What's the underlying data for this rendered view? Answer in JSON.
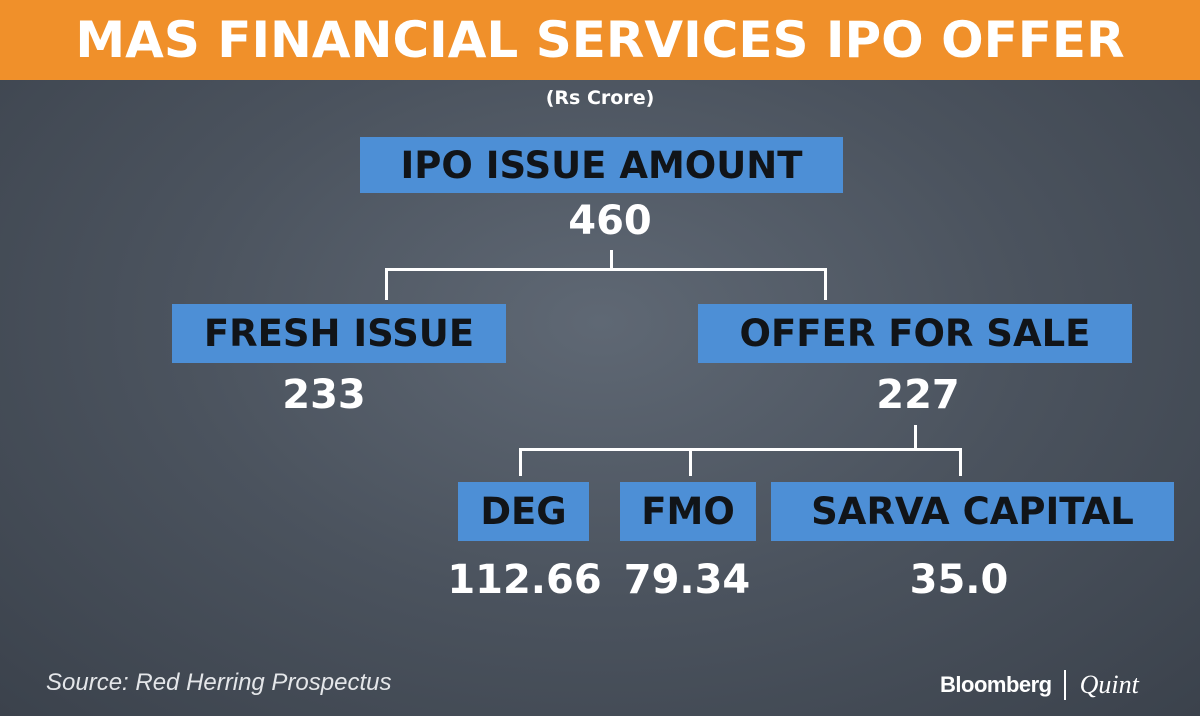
{
  "title": "MAS FINANCIAL SERVICES IPO OFFER",
  "subtitle": "(Rs Crore)",
  "tree": {
    "root": {
      "label": "IPO ISSUE AMOUNT",
      "value": "460"
    },
    "fresh_issue": {
      "label": "FRESH ISSUE",
      "value": "233"
    },
    "offer_for_sale": {
      "label": "OFFER FOR SALE",
      "value": "227"
    },
    "deg": {
      "label": "DEG",
      "value": "112.66"
    },
    "fmo": {
      "label": "FMO",
      "value": "79.34"
    },
    "sarva": {
      "label": "SARVA CAPITAL",
      "value": "35.0"
    }
  },
  "source": "Source: Red Herring Prospectus",
  "brand": {
    "primary": "Bloomberg",
    "secondary": "Quint"
  },
  "colors": {
    "banner": "#f0902a",
    "box": "#4d8fd6",
    "background": "#4f5762"
  }
}
